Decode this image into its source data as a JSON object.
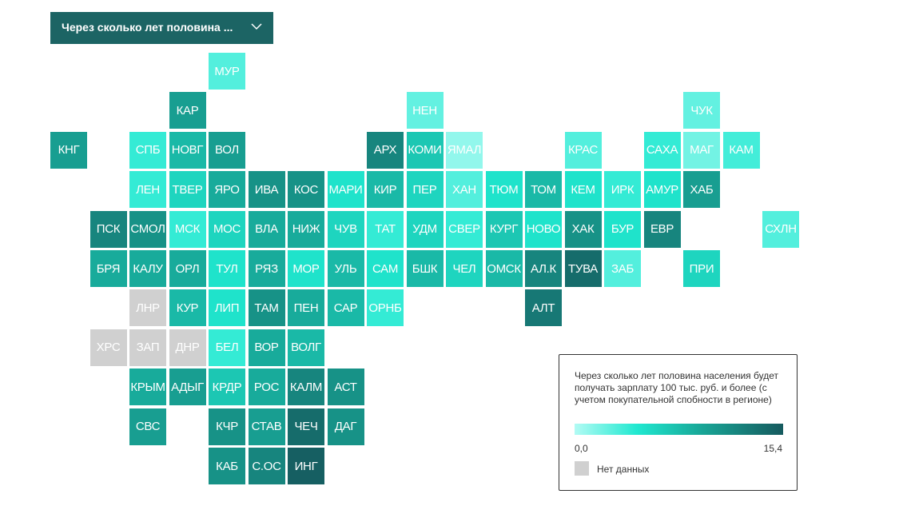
{
  "dropdown": {
    "label": "Через сколько лет половина ..."
  },
  "chart_data": {
    "type": "tile-map",
    "regions": [
      "МУР",
      "КАР",
      "НЕН",
      "ЧУК",
      "КНГ",
      "СПБ",
      "НОВГ",
      "ВОЛ",
      "АРХ",
      "КОМИ",
      "ЯМАЛ",
      "КРАС",
      "САХА",
      "МАГ",
      "КАМ",
      "ЛЕН",
      "ТВЕР",
      "ЯРО",
      "ИВА",
      "КОС",
      "МАРИ",
      "КИР",
      "ПЕР",
      "ХАН",
      "ТЮМ",
      "ТОМ",
      "КЕМ",
      "ИРК",
      "АМУР",
      "ХАБ",
      "ПСК",
      "СМОЛ",
      "МСК",
      "МОС",
      "ВЛА",
      "НИЖ",
      "ЧУВ",
      "ТАТ",
      "УДМ",
      "СВЕР",
      "КУРГ",
      "НОВО",
      "ХАК",
      "БУР",
      "ЕВР",
      "СХЛН",
      "БРЯ",
      "КАЛУ",
      "ОРЛ",
      "ТУЛ",
      "РЯЗ",
      "МОР",
      "УЛЬ",
      "САМ",
      "БШК",
      "ЧЕЛ",
      "ОМСК",
      "АЛ.К",
      "ТУВА",
      "ЗАБ",
      "ПРИ",
      "ЛНР",
      "КУР",
      "ЛИП",
      "ТАМ",
      "ПЕН",
      "САР",
      "ОРНБ",
      "АЛТ",
      "ХРС",
      "ЗАП",
      "ДНР",
      "БЕЛ",
      "ВОР",
      "ВОЛГ",
      "КРЫМ",
      "АДЫГ",
      "КРДР",
      "РОС",
      "КАЛМ",
      "АСТ",
      "СВС",
      "КЧР",
      "СТАВ",
      "ЧЕЧ",
      "ДАГ",
      "КАБ",
      "С.ОС",
      "ИНГ"
    ],
    "values": [
      3,
      10,
      2.5,
      2.5,
      10,
      4,
      8,
      10,
      12,
      7,
      1,
      3,
      4,
      2,
      3.5,
      4,
      6,
      9,
      11,
      11,
      5,
      8,
      6,
      3,
      5,
      8,
      5,
      4,
      5,
      10,
      12,
      11,
      4,
      6,
      9,
      9,
      6,
      4,
      6,
      4,
      7,
      5,
      11,
      5,
      12,
      3,
      9,
      9,
      9,
      5,
      9,
      5,
      8,
      5,
      8,
      6,
      8,
      12,
      14,
      3,
      6,
      null,
      8,
      5,
      11,
      9,
      8,
      4,
      13,
      null,
      null,
      null,
      4,
      9,
      8,
      9,
      10,
      7,
      9,
      12,
      11,
      10,
      11,
      10,
      14,
      11,
      11,
      12,
      15
    ],
    "legend": {
      "title": "Через сколько лет половина населения будет получать зарплату 100 тыс. руб. и более (с учетом покупательной спобности в регионе)",
      "min": {
        "value": 0,
        "label": "0,0"
      },
      "max": {
        "value": 15.4,
        "label": "15,4"
      },
      "no_data": "Нет данных"
    }
  }
}
